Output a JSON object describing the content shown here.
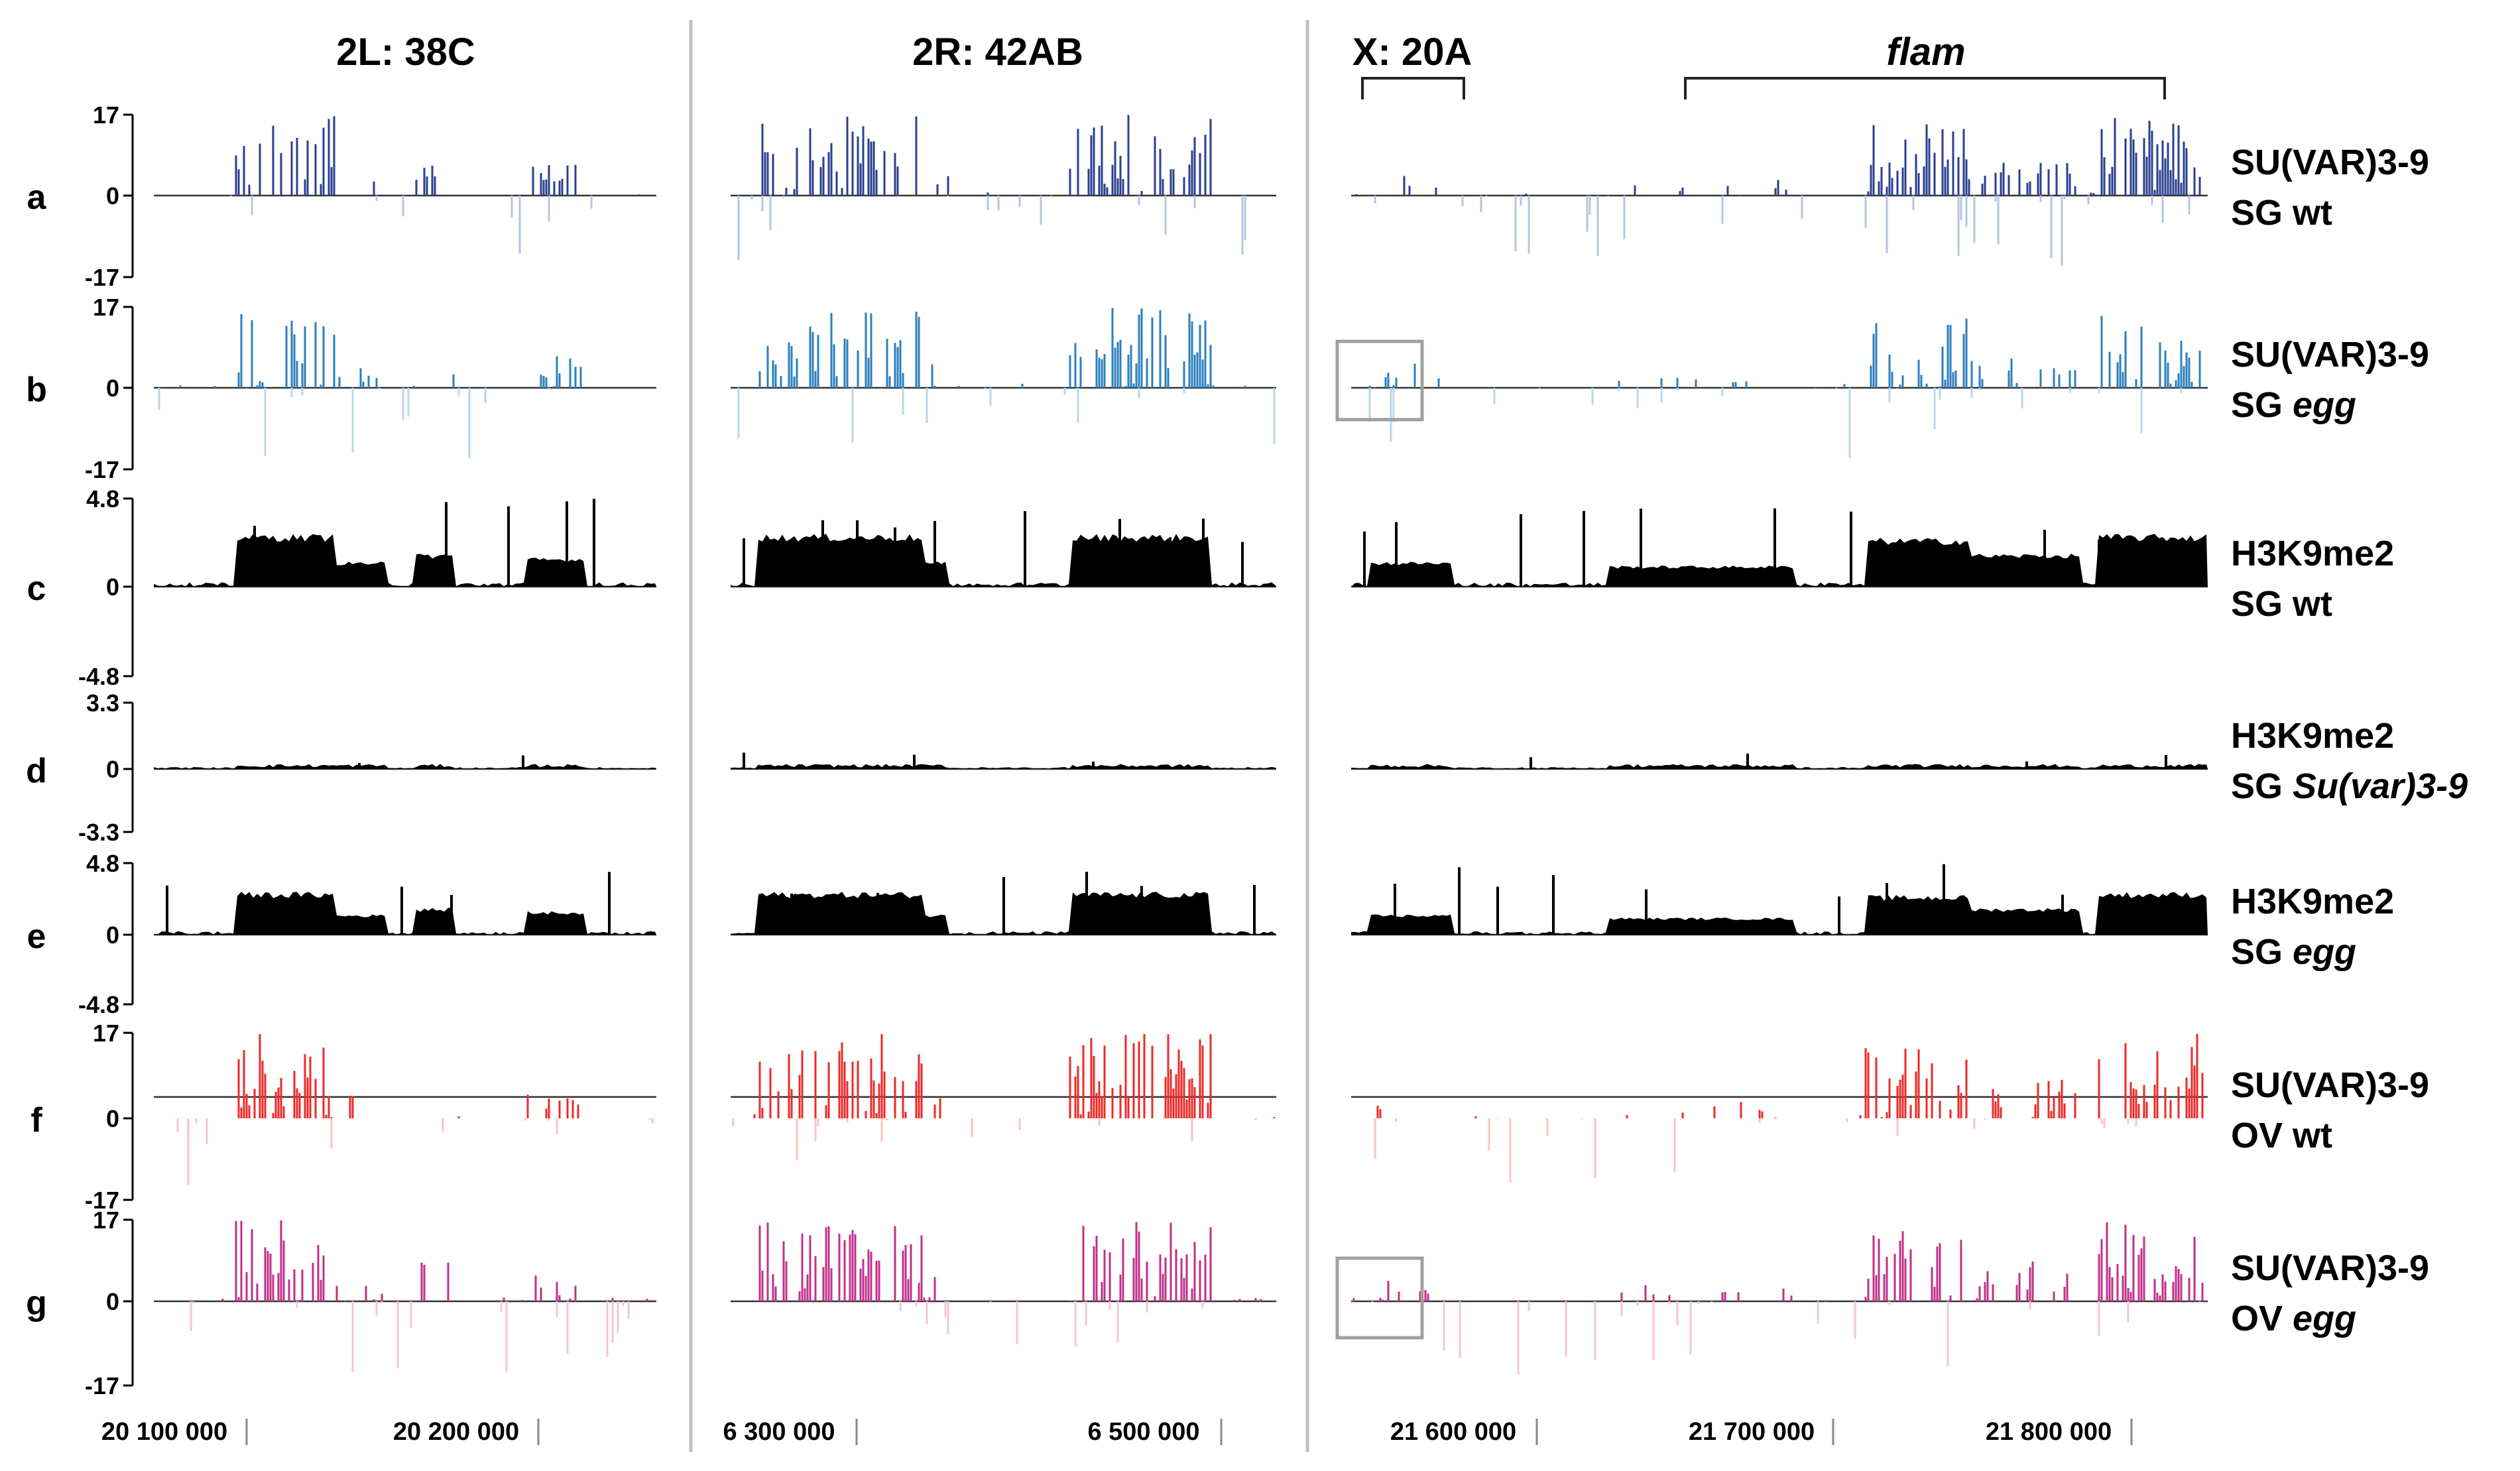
{
  "chart_data": {
    "type": "bar",
    "panels": [
      {
        "id": "2L",
        "title": "2L: 38C",
        "x_ticks": [
          "20 100 000",
          "20 200 000"
        ]
      },
      {
        "id": "2R",
        "title": "2R: 42AB",
        "x_ticks": [
          "6 300 000",
          "6 500 000"
        ]
      },
      {
        "id": "X",
        "title": "X: 20A",
        "x_ticks": [
          "21 600 000",
          "21 700 000",
          "21 800 000"
        ],
        "bracket_label": "flam"
      }
    ],
    "tracks": [
      {
        "letter": "a",
        "label1": "SU(VAR)3-9",
        "label2a": "SG ",
        "label2b": "wt",
        "label2b_italic": false,
        "ymax": "17",
        "ymid": "0",
        "ymin": "-17",
        "color": "#2a3f8f",
        "color_neg": "#b7c4e0",
        "style": "bars",
        "threshold_line": false
      },
      {
        "letter": "b",
        "label1": "SU(VAR)3-9",
        "label2a": "SG ",
        "label2b": "egg",
        "label2b_italic": true,
        "ymax": "17",
        "ymid": "0",
        "ymin": "-17",
        "color": "#2b7fbf",
        "color_neg": "#b9d6ec",
        "style": "bars",
        "threshold_line": false
      },
      {
        "letter": "c",
        "label1": "H3K9me2",
        "label2a": "SG ",
        "label2b": "wt",
        "label2b_italic": false,
        "ymax": "4.8",
        "ymid": "0",
        "ymin": "-4.8",
        "color": "#000000",
        "color_neg": "#888888",
        "style": "fill",
        "threshold_line": false
      },
      {
        "letter": "d",
        "label1": "H3K9me2",
        "label2a": "SG ",
        "label2b": "Su(var)3-9",
        "label2b_italic": true,
        "ymax": "3.3",
        "ymid": "0",
        "ymin": "-3.3",
        "color": "#000000",
        "color_neg": "#aaaaaa",
        "style": "fill_small",
        "threshold_line": false
      },
      {
        "letter": "e",
        "label1": "H3K9me2",
        "label2a": "SG ",
        "label2b": "egg",
        "label2b_italic": true,
        "ymax": "4.8",
        "ymid": "0",
        "ymin": "-4.8",
        "color": "#000000",
        "color_neg": "#888888",
        "style": "fill",
        "threshold_line": false
      },
      {
        "letter": "f",
        "label1": "SU(VAR)3-9",
        "label2a": "OV ",
        "label2b": "wt",
        "label2b_italic": false,
        "ymax": "17",
        "ymid": "0",
        "ymin": "-17",
        "color": "#ee2a2a",
        "color_neg": "#f7c4c4",
        "style": "bars",
        "threshold_line": true
      },
      {
        "letter": "g",
        "label1": "SU(VAR)3-9",
        "label2a": "OV ",
        "label2b": "egg",
        "label2b_italic": true,
        "ymax": "17",
        "ymid": "0",
        "ymin": "-17",
        "color": "#c0308a",
        "color_neg": "#f4c6d0",
        "style": "bars",
        "threshold_line": false
      }
    ]
  }
}
